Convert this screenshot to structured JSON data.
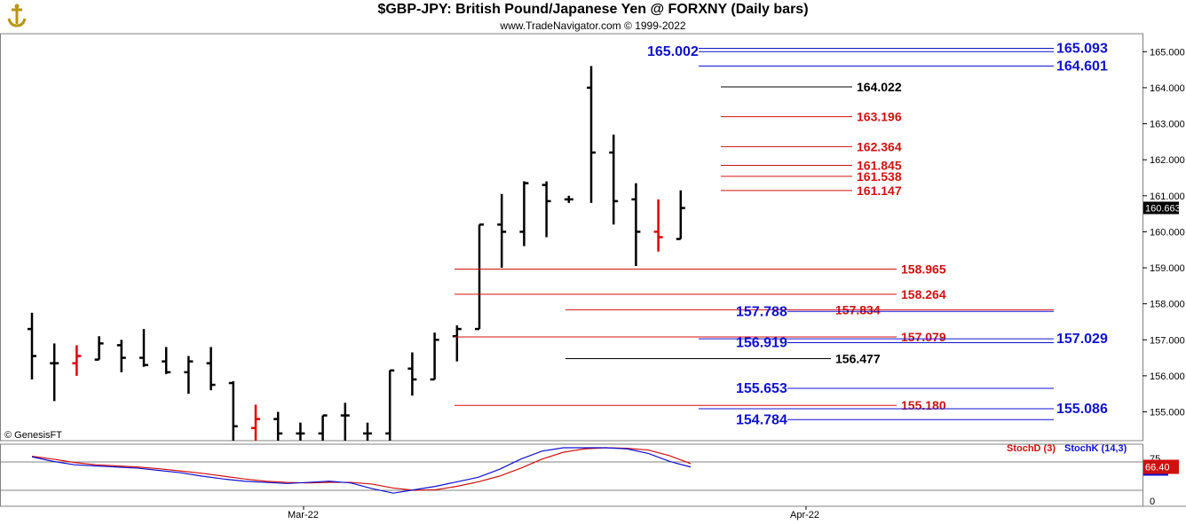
{
  "header": {
    "title": "$GBP-JPY:  British Pound/Japanese Yen @ FORXNY  (Daily bars)",
    "subtitle": "www.TradeNavigator.com © 1999-2022",
    "logo_icon": "anchor-logo-icon"
  },
  "watermark": "© GenesisFT",
  "chart_data": [
    {
      "type": "ohlc",
      "y_ticks": [
        "155.000",
        "156.000",
        "157.000",
        "158.000",
        "159.000",
        "160.000",
        "161.000",
        "162.000",
        "163.000",
        "164.000",
        "165.000"
      ],
      "ylim": [
        154.2,
        165.5
      ],
      "x_tick_labels": [
        "Mar-22",
        "Apr-22"
      ],
      "last_price": "160.663",
      "bars": [
        {
          "o": 157.3,
          "h": 157.75,
          "l": 155.9,
          "c": 156.55,
          "color": "#000000"
        },
        {
          "o": 156.35,
          "h": 156.9,
          "l": 155.3,
          "c": 156.35,
          "color": "#000000"
        },
        {
          "o": 156.35,
          "h": 156.85,
          "l": 156.0,
          "c": 156.55,
          "color": "#e00000"
        },
        {
          "o": 156.45,
          "h": 157.1,
          "l": 156.45,
          "c": 156.9,
          "color": "#000000"
        },
        {
          "o": 156.85,
          "h": 157.0,
          "l": 156.1,
          "c": 156.5,
          "color": "#000000"
        },
        {
          "o": 156.5,
          "h": 157.3,
          "l": 156.25,
          "c": 156.3,
          "color": "#000000"
        },
        {
          "o": 156.4,
          "h": 156.8,
          "l": 156.05,
          "c": 156.1,
          "color": "#000000"
        },
        {
          "o": 156.1,
          "h": 156.55,
          "l": 155.5,
          "c": 156.4,
          "color": "#000000"
        },
        {
          "o": 156.35,
          "h": 156.8,
          "l": 155.6,
          "c": 155.75,
          "color": "#000000"
        },
        {
          "o": 155.8,
          "h": 155.85,
          "l": 154.0,
          "c": 154.6,
          "color": "#000000"
        },
        {
          "o": 154.55,
          "h": 155.2,
          "l": 154.0,
          "c": 154.8,
          "color": "#e00000"
        },
        {
          "o": 154.8,
          "h": 155.0,
          "l": 154.0,
          "c": 154.4,
          "color": "#000000"
        },
        {
          "o": 154.4,
          "h": 154.7,
          "l": 154.0,
          "c": 154.4,
          "color": "#000000"
        },
        {
          "o": 154.4,
          "h": 154.9,
          "l": 154.0,
          "c": 154.9,
          "color": "#000000"
        },
        {
          "o": 154.9,
          "h": 155.25,
          "l": 154.0,
          "c": 154.9,
          "color": "#000000"
        },
        {
          "o": 154.4,
          "h": 154.7,
          "l": 154.0,
          "c": 154.4,
          "color": "#000000"
        },
        {
          "o": 154.4,
          "h": 156.15,
          "l": 154.1,
          "c": 156.15,
          "color": "#000000"
        },
        {
          "o": 156.2,
          "h": 156.65,
          "l": 155.45,
          "c": 155.9,
          "color": "#000000"
        },
        {
          "o": 155.9,
          "h": 157.2,
          "l": 155.9,
          "c": 157.0,
          "color": "#000000"
        },
        {
          "o": 157.1,
          "h": 157.4,
          "l": 156.4,
          "c": 157.3,
          "color": "#000000"
        },
        {
          "o": 157.3,
          "h": 160.2,
          "l": 157.3,
          "c": 160.2,
          "color": "#000000"
        },
        {
          "o": 160.2,
          "h": 161.05,
          "l": 159.0,
          "c": 160.0,
          "color": "#000000"
        },
        {
          "o": 160.0,
          "h": 161.4,
          "l": 159.6,
          "c": 161.35,
          "color": "#000000"
        },
        {
          "o": 161.3,
          "h": 161.4,
          "l": 159.85,
          "c": 160.85,
          "color": "#000000"
        },
        {
          "o": 160.9,
          "h": 161.0,
          "l": 160.8,
          "c": 160.9,
          "color": "#000000"
        },
        {
          "o": 164.0,
          "h": 164.6,
          "l": 160.8,
          "c": 162.2,
          "color": "#000000"
        },
        {
          "o": 162.2,
          "h": 162.7,
          "l": 160.2,
          "c": 160.85,
          "color": "#000000"
        },
        {
          "o": 160.9,
          "h": 161.35,
          "l": 159.05,
          "c": 160.0,
          "color": "#000000"
        },
        {
          "o": 160.0,
          "h": 160.9,
          "l": 159.45,
          "c": 159.85,
          "color": "#e00000"
        },
        {
          "o": 159.8,
          "h": 161.15,
          "l": 159.8,
          "c": 160.66,
          "color": "#000000"
        }
      ],
      "levels": [
        {
          "label": "165.093",
          "value": 165.093,
          "color": "#1010d0",
          "side": "right"
        },
        {
          "label": "165.002",
          "value": 165.002,
          "color": "#1010d0",
          "side": "left"
        },
        {
          "label": "164.601",
          "value": 164.601,
          "color": "#1010d0",
          "side": "right"
        },
        {
          "label": "164.022",
          "value": 164.022,
          "color": "#000000",
          "side": "mid"
        },
        {
          "label": "163.196",
          "value": 163.196,
          "color": "#d01010",
          "side": "mid"
        },
        {
          "label": "162.364",
          "value": 162.364,
          "color": "#d01010",
          "side": "mid"
        },
        {
          "label": "161.845",
          "value": 161.845,
          "color": "#d01010",
          "side": "mid"
        },
        {
          "label": "161.538",
          "value": 161.538,
          "color": "#d01010",
          "side": "mid"
        },
        {
          "label": "161.147",
          "value": 161.147,
          "color": "#d01010",
          "side": "mid"
        },
        {
          "label": "158.965",
          "value": 158.965,
          "color": "#d01010",
          "side": "mid2"
        },
        {
          "label": "158.264",
          "value": 158.264,
          "color": "#d01010",
          "side": "mid2"
        },
        {
          "label": "157.834",
          "value": 157.834,
          "color": "#d01010",
          "side": "mid3"
        },
        {
          "label": "157.788",
          "value": 157.788,
          "color": "#1010d0",
          "side": "left2"
        },
        {
          "label": "157.079",
          "value": 157.079,
          "color": "#d01010",
          "side": "mid2"
        },
        {
          "label": "157.029",
          "value": 157.029,
          "color": "#1010d0",
          "side": "right"
        },
        {
          "label": "156.919",
          "value": 156.919,
          "color": "#1010d0",
          "side": "left2"
        },
        {
          "label": "156.477",
          "value": 156.477,
          "color": "#000000",
          "side": "mid4"
        },
        {
          "label": "155.653",
          "value": 155.653,
          "color": "#1010d0",
          "side": "left2"
        },
        {
          "label": "155.180",
          "value": 155.18,
          "color": "#d01010",
          "side": "mid2"
        },
        {
          "label": "155.086",
          "value": 155.086,
          "color": "#1010d0",
          "side": "right"
        },
        {
          "label": "154.784",
          "value": 154.784,
          "color": "#1010d0",
          "side": "left2"
        }
      ]
    },
    {
      "type": "line",
      "title": "StochD (3)  StochK (14,3)",
      "legend": [
        {
          "name": "StochD (3)",
          "color": "#d01010"
        },
        {
          "name": "StochK (14,3)",
          "color": "#1010d0"
        }
      ],
      "y_ticks": [
        "0",
        "75"
      ],
      "ylim": [
        0,
        100
      ],
      "last_value": "66.40",
      "series": [
        {
          "name": "StochK (14,3)",
          "color": "#1010d0",
          "values": [
            84,
            76,
            70,
            68,
            66,
            64,
            60,
            56,
            50,
            45,
            41,
            39,
            37,
            39,
            41,
            38,
            28,
            20,
            26,
            32,
            40,
            48,
            62,
            80,
            94,
            100,
            100,
            100,
            98,
            90,
            76,
            66
          ]
        },
        {
          "name": "StochD (3)",
          "color": "#d01010",
          "values": [
            85,
            80,
            74,
            70,
            68,
            66,
            63,
            59,
            55,
            50,
            45,
            41,
            39,
            38,
            39,
            39,
            36,
            29,
            25,
            26,
            32,
            40,
            50,
            64,
            80,
            92,
            98,
            100,
            99,
            96,
            86,
            72
          ]
        }
      ]
    }
  ]
}
